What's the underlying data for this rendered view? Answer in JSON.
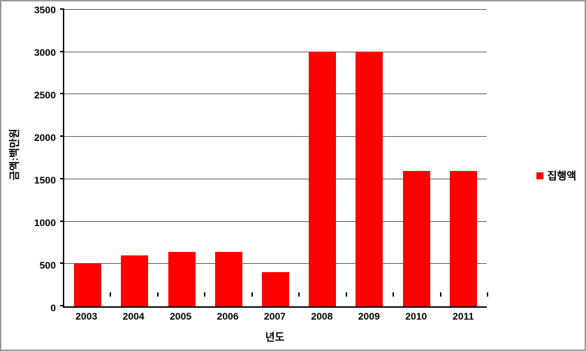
{
  "chart": {
    "type": "bar",
    "categories": [
      "2003",
      "2004",
      "2005",
      "2006",
      "2007",
      "2008",
      "2009",
      "2010",
      "2011"
    ],
    "values": [
      500,
      600,
      640,
      640,
      400,
      3010,
      3010,
      1600,
      1600
    ],
    "bar_color": "#ff0000",
    "yaxis": {
      "min": 0,
      "max": 3500,
      "ticks": [
        0,
        500,
        1000,
        1500,
        2000,
        2500,
        3000,
        3500
      ],
      "label": "금액:백만원",
      "label_fontsize": 15,
      "tick_fontsize": 14,
      "tick_fontweight": "bold"
    },
    "xaxis": {
      "label": "년도",
      "label_fontsize": 15,
      "tick_fontsize": 14,
      "tick_fontweight": "bold"
    },
    "legend": {
      "label": "집행액",
      "swatch_color": "#ff0000",
      "position": "right",
      "fontsize": 15
    },
    "background_color": "#ffffff",
    "grid_color": "#5a5a5a",
    "axis_color": "#000000",
    "border_color": "#999999",
    "bar_width_ratio": 0.58
  }
}
